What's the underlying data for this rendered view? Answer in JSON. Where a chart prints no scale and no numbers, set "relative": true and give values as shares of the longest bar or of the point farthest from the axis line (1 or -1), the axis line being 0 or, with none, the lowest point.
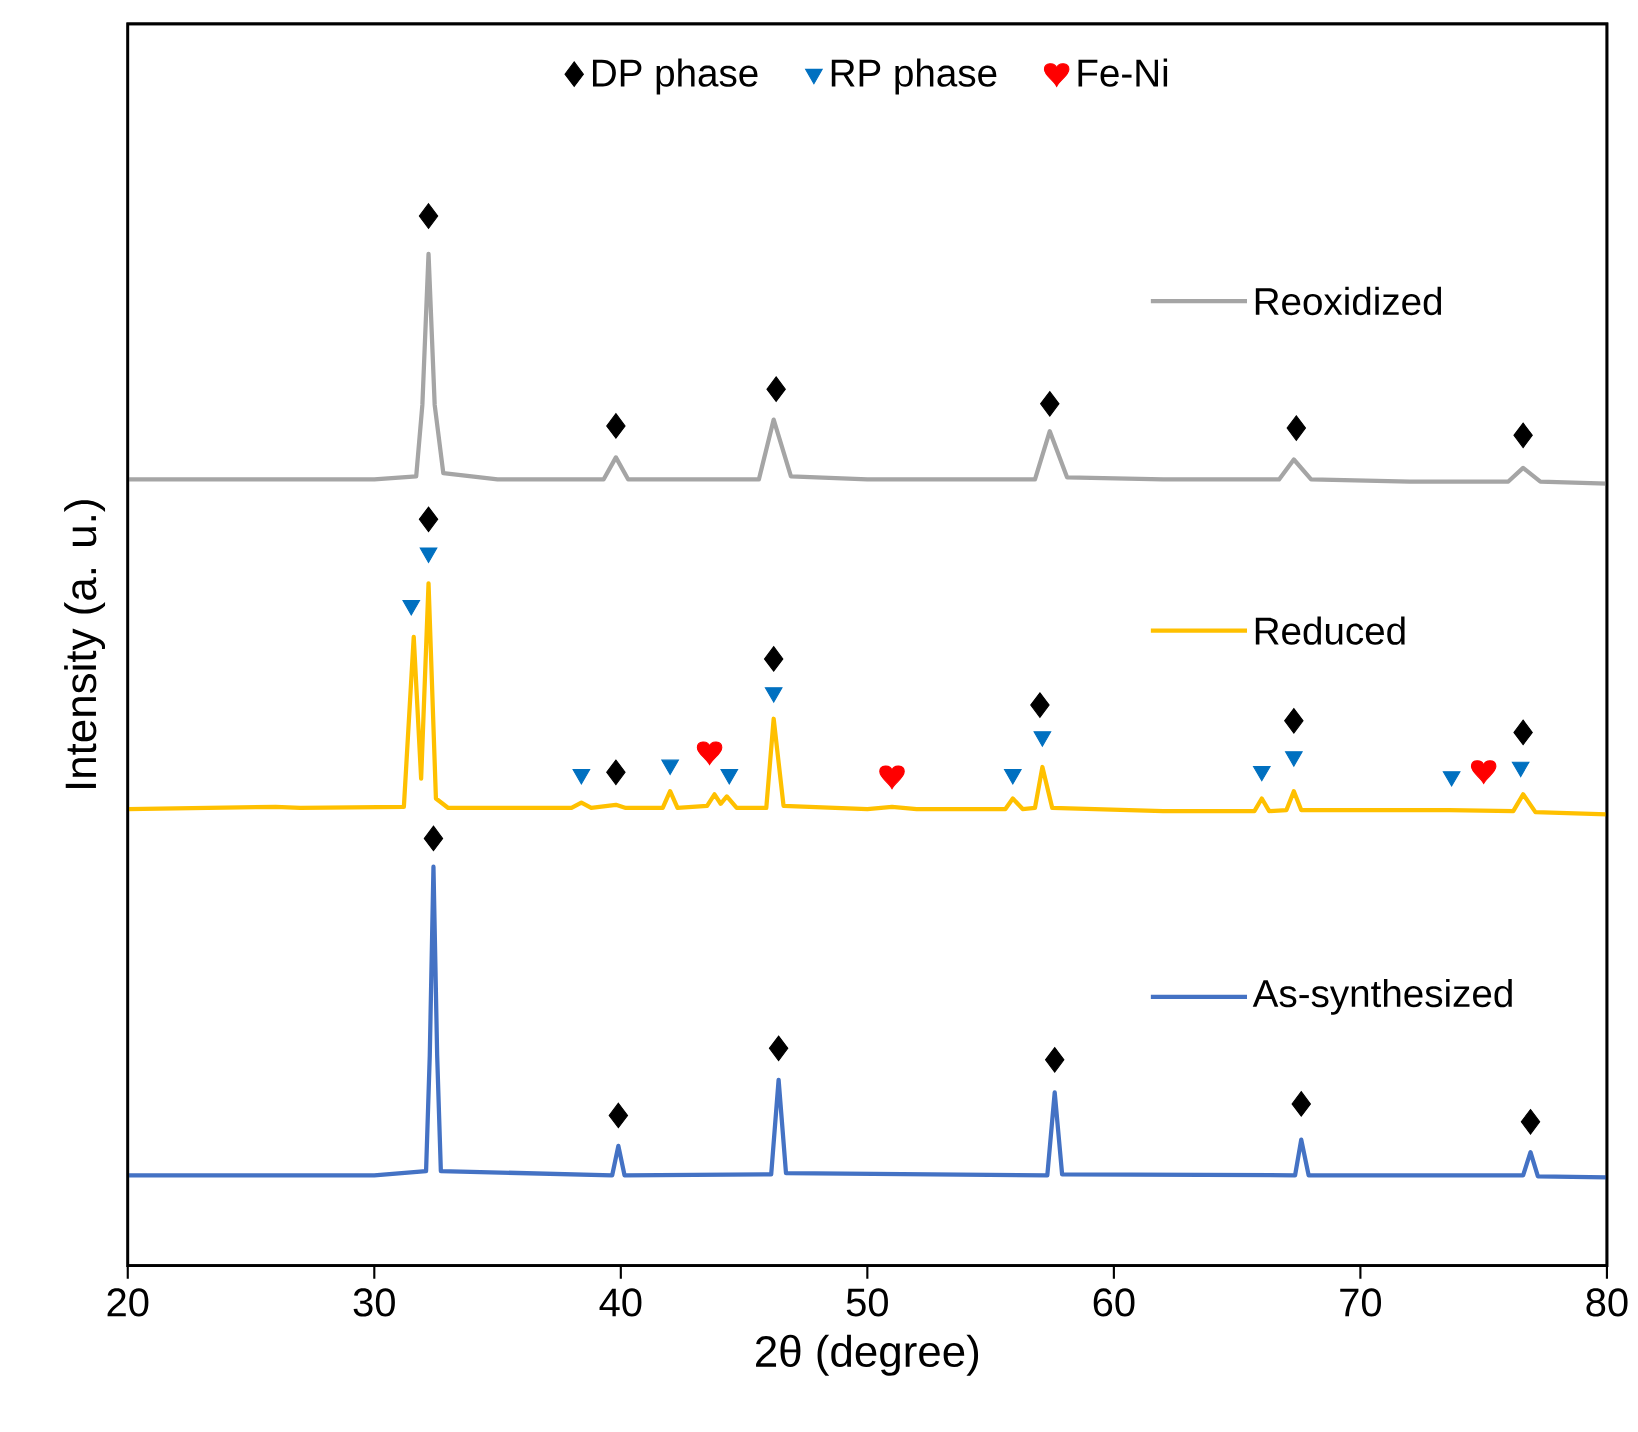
{
  "chart_data": {
    "type": "line",
    "xlabel": "2θ (degree)",
    "ylabel": "Intensity (a. u.)",
    "xlim": [
      20,
      80
    ],
    "xticks": [
      20,
      30,
      40,
      50,
      60,
      70,
      80
    ],
    "relative": true,
    "legend": "top",
    "series": [
      {
        "name": "Reoxidized",
        "color": "#a5a5a5",
        "x": [
          20,
          25,
          30,
          31.7,
          31.95,
          32.2,
          32.45,
          32.8,
          35,
          39.3,
          39.8,
          40.3,
          45.6,
          46.2,
          46.9,
          50,
          56.8,
          57.4,
          58.1,
          62,
          66.7,
          67.3,
          68.0,
          72,
          76.0,
          76.6,
          77.3,
          80
        ],
        "values": [
          0.749,
          0.749,
          0.749,
          0.752,
          0.82,
          0.964,
          0.82,
          0.755,
          0.749,
          0.749,
          0.77,
          0.749,
          0.749,
          0.806,
          0.752,
          0.749,
          0.749,
          0.795,
          0.751,
          0.749,
          0.749,
          0.768,
          0.749,
          0.747,
          0.747,
          0.76,
          0.747,
          0.745
        ]
      },
      {
        "name": "Reduced",
        "color": "#ffc000",
        "x": [
          20,
          26,
          27,
          31.2,
          31.6,
          31.9,
          32.2,
          32.5,
          33,
          38.0,
          38.4,
          38.8,
          39.8,
          40.2,
          41.7,
          42.0,
          42.3,
          43.5,
          43.8,
          44.05,
          44.3,
          44.7,
          45.9,
          46.2,
          46.6,
          50,
          51.0,
          52,
          55.6,
          55.9,
          56.3,
          56.8,
          57.1,
          57.5,
          62,
          65.7,
          66.0,
          66.3,
          67.0,
          67.3,
          67.6,
          73.6,
          76.2,
          76.6,
          77.1,
          80
        ],
        "values": [
          0.435,
          0.437,
          0.436,
          0.437,
          0.599,
          0.464,
          0.65,
          0.445,
          0.436,
          0.436,
          0.441,
          0.436,
          0.439,
          0.436,
          0.436,
          0.452,
          0.436,
          0.438,
          0.449,
          0.44,
          0.447,
          0.436,
          0.436,
          0.521,
          0.438,
          0.435,
          0.437,
          0.435,
          0.435,
          0.445,
          0.435,
          0.436,
          0.475,
          0.436,
          0.433,
          0.433,
          0.445,
          0.433,
          0.434,
          0.452,
          0.434,
          0.434,
          0.433,
          0.449,
          0.432,
          0.43
        ]
      },
      {
        "name": "As-synthesized",
        "color": "#4472c4",
        "x": [
          20,
          30,
          32.1,
          32.25,
          32.4,
          32.55,
          32.7,
          39.65,
          39.9,
          40.15,
          46.1,
          46.4,
          46.7,
          57.3,
          57.6,
          57.9,
          67.35,
          67.6,
          67.9,
          76.6,
          76.9,
          77.2,
          80
        ],
        "values": [
          0.086,
          0.086,
          0.09,
          0.2,
          0.38,
          0.2,
          0.09,
          0.086,
          0.114,
          0.086,
          0.087,
          0.177,
          0.088,
          0.086,
          0.165,
          0.087,
          0.086,
          0.12,
          0.086,
          0.086,
          0.108,
          0.085,
          0.084
        ]
      },
      {
        "name": "DP phase",
        "type": "scatter",
        "marker": "diamond",
        "color": "#000000",
        "x": [
          32.2,
          39.8,
          46.3,
          57.4,
          67.4,
          76.6,
          32.2,
          39.8,
          46.2,
          57.0,
          67.3,
          76.6,
          32.4,
          39.9,
          46.4,
          57.6,
          67.6,
          76.9
        ],
        "values": [
          1.0,
          0.8,
          0.835,
          0.821,
          0.798,
          0.791,
          0.711,
          0.47,
          0.578,
          0.534,
          0.519,
          0.508,
          0.407,
          0.143,
          0.207,
          0.196,
          0.154,
          0.137
        ]
      },
      {
        "name": "RP phase",
        "type": "scatter",
        "marker": "triangle-down",
        "color": "#0070c0",
        "x": [
          31.5,
          32.2,
          38.4,
          42.0,
          44.4,
          46.2,
          55.9,
          57.1,
          66.0,
          67.3,
          73.7,
          76.5
        ],
        "values": [
          0.629,
          0.679,
          0.468,
          0.477,
          0.468,
          0.546,
          0.468,
          0.504,
          0.471,
          0.485,
          0.466,
          0.475
        ]
      },
      {
        "name": "Fe-Ni",
        "type": "scatter",
        "color": "#ff0000",
        "x": [
          43.6,
          51.0,
          75.0
        ],
        "values": [
          0.489,
          0.466,
          0.471
        ]
      }
    ]
  }
}
